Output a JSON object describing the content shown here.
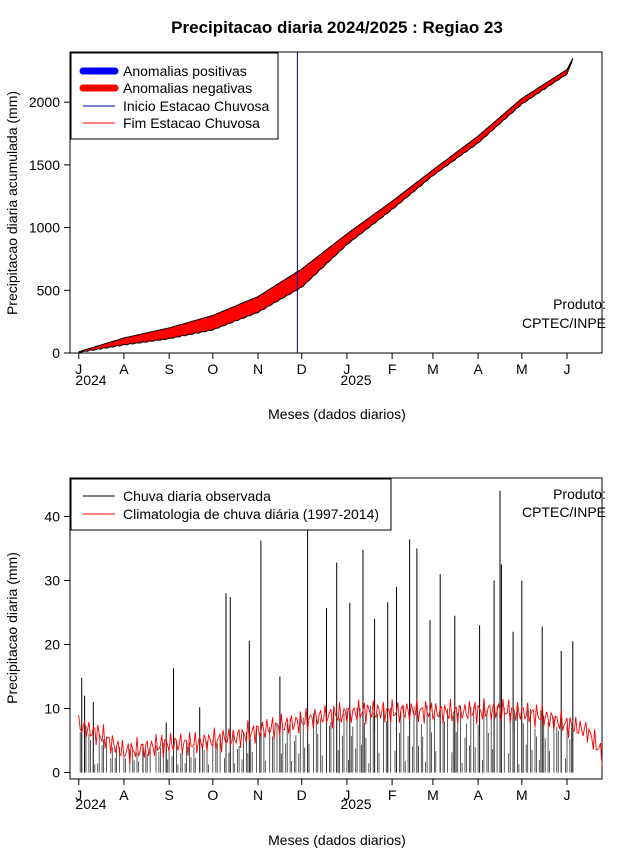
{
  "page": {
    "title": "Precipitacao diaria 2024/2025 : Regiao 23"
  },
  "colors": {
    "positive_anomaly": "#0000ff",
    "negative_anomaly": "#ff0000",
    "rainy_start": "#00008b",
    "rainy_end": "#ff0000",
    "observed": "#000000",
    "climatology": "#ff0000"
  },
  "chart_data": [
    {
      "type": "area",
      "title": "Precipitacao diaria 2024/2025 : Regiao 23",
      "xlabel": "Meses (dados diarios)",
      "ylabel": "Precipitacao diaria acumulada (mm)",
      "x_ticks": [
        "J",
        "A",
        "S",
        "O",
        "N",
        "D",
        "J",
        "F",
        "M",
        "A",
        "M",
        "J"
      ],
      "x_tick_dates": [
        "2024-07-01",
        "2024-08-01",
        "2024-09-01",
        "2024-10-01",
        "2024-11-01",
        "2024-12-01",
        "2025-01-01",
        "2025-02-01",
        "2025-03-01",
        "2025-04-01",
        "2025-05-01",
        "2025-06-01"
      ],
      "year_labels": [
        "2024",
        "2025"
      ],
      "xlim": [
        "2024-06-25",
        "2025-06-25"
      ],
      "ylim": [
        0,
        2400
      ],
      "y_ticks": [
        0,
        500,
        1000,
        1500,
        2000
      ],
      "annotation": [
        "Produto:",
        "CPTEC/INPE"
      ],
      "legend": {
        "position": "top-left",
        "entries": [
          {
            "label": "Anomalias positivas",
            "color": "#0000ff",
            "style": "thick"
          },
          {
            "label": "Anomalias negativas",
            "color": "#ff0000",
            "style": "thick"
          },
          {
            "label": "Inicio Estacao Chuvosa",
            "color": "#00008b",
            "style": "thin"
          },
          {
            "label": "Fim Estacao Chuvosa",
            "color": "#ff0000",
            "style": "thin"
          }
        ]
      },
      "rainy_season_start": "2024-11-28",
      "climatology_cumulative": [
        {
          "date": "2024-07-01",
          "value": 10
        },
        {
          "date": "2024-08-01",
          "value": 120
        },
        {
          "date": "2024-09-01",
          "value": 200
        },
        {
          "date": "2024-10-01",
          "value": 300
        },
        {
          "date": "2024-11-01",
          "value": 450
        },
        {
          "date": "2024-12-01",
          "value": 670
        },
        {
          "date": "2025-01-01",
          "value": 950
        },
        {
          "date": "2025-02-01",
          "value": 1210
        },
        {
          "date": "2025-03-01",
          "value": 1460
        },
        {
          "date": "2025-04-01",
          "value": 1730
        },
        {
          "date": "2025-05-01",
          "value": 2030
        },
        {
          "date": "2025-06-01",
          "value": 2260
        },
        {
          "date": "2025-06-05",
          "value": 2350
        }
      ],
      "observed_cumulative": [
        {
          "date": "2024-07-01",
          "value": 10
        },
        {
          "date": "2024-08-01",
          "value": 70
        },
        {
          "date": "2024-09-01",
          "value": 120
        },
        {
          "date": "2024-10-01",
          "value": 190
        },
        {
          "date": "2024-11-01",
          "value": 330
        },
        {
          "date": "2024-12-01",
          "value": 530
        },
        {
          "date": "2025-01-01",
          "value": 870
        },
        {
          "date": "2025-02-01",
          "value": 1150
        },
        {
          "date": "2025-03-01",
          "value": 1420
        },
        {
          "date": "2025-04-01",
          "value": 1680
        },
        {
          "date": "2025-05-01",
          "value": 1990
        },
        {
          "date": "2025-06-01",
          "value": 2230
        },
        {
          "date": "2025-06-05",
          "value": 2350
        }
      ]
    },
    {
      "type": "bar",
      "xlabel": "Meses (dados diarios)",
      "ylabel": "Precipitacao diaria (mm)",
      "x_ticks": [
        "J",
        "A",
        "S",
        "O",
        "N",
        "D",
        "J",
        "F",
        "M",
        "A",
        "M",
        "J"
      ],
      "x_tick_dates": [
        "2024-07-01",
        "2024-08-01",
        "2024-09-01",
        "2024-10-01",
        "2024-11-01",
        "2024-12-01",
        "2025-01-01",
        "2025-02-01",
        "2025-03-01",
        "2025-04-01",
        "2025-05-01",
        "2025-06-01"
      ],
      "year_labels": [
        "2024",
        "2025"
      ],
      "xlim": [
        "2024-06-25",
        "2025-06-25"
      ],
      "ylim": [
        -1,
        46
      ],
      "y_ticks": [
        0,
        10,
        20,
        30,
        40
      ],
      "annotation": [
        "Produto:",
        "CPTEC/INPE"
      ],
      "legend": {
        "position": "top-left",
        "entries": [
          {
            "label": "Chuva diaria observada",
            "color": "#000000"
          },
          {
            "label": "Climatologia de chuva diária (1997-2014)",
            "color": "#ff0000"
          }
        ]
      },
      "observed_daily": [
        {
          "date": "2024-07-03",
          "value": 14.8
        },
        {
          "date": "2024-07-05",
          "value": 12.0
        },
        {
          "date": "2024-07-11",
          "value": 11.0
        },
        {
          "date": "2024-08-14",
          "value": 4.5
        },
        {
          "date": "2024-08-30",
          "value": 7.8
        },
        {
          "date": "2024-09-04",
          "value": 16.3
        },
        {
          "date": "2024-09-22",
          "value": 10.2
        },
        {
          "date": "2024-10-10",
          "value": 28.0
        },
        {
          "date": "2024-10-13",
          "value": 27.4
        },
        {
          "date": "2024-10-26",
          "value": 20.6
        },
        {
          "date": "2024-11-03",
          "value": 36.2
        },
        {
          "date": "2024-11-16",
          "value": 15.0
        },
        {
          "date": "2024-12-05",
          "value": 38.0
        },
        {
          "date": "2024-12-18",
          "value": 25.7
        },
        {
          "date": "2024-12-25",
          "value": 32.8
        },
        {
          "date": "2025-01-03",
          "value": 26.5
        },
        {
          "date": "2025-01-12",
          "value": 34.8
        },
        {
          "date": "2025-01-20",
          "value": 24.0
        },
        {
          "date": "2025-01-29",
          "value": 26.6
        },
        {
          "date": "2025-02-04",
          "value": 29.0
        },
        {
          "date": "2025-02-13",
          "value": 36.4
        },
        {
          "date": "2025-02-18",
          "value": 35.0
        },
        {
          "date": "2025-02-27",
          "value": 23.8
        },
        {
          "date": "2025-03-06",
          "value": 31.0
        },
        {
          "date": "2025-03-16",
          "value": 24.5
        },
        {
          "date": "2025-04-02",
          "value": 23.0
        },
        {
          "date": "2025-04-12",
          "value": 30.0
        },
        {
          "date": "2025-04-16",
          "value": 44.0
        },
        {
          "date": "2025-04-17",
          "value": 32.5
        },
        {
          "date": "2025-04-25",
          "value": 22.0
        },
        {
          "date": "2025-05-01",
          "value": 30.0
        },
        {
          "date": "2025-05-15",
          "value": 22.8
        },
        {
          "date": "2025-05-28",
          "value": 19.0
        },
        {
          "date": "2025-06-05",
          "value": 20.5
        }
      ],
      "climatology_daily": [
        {
          "date": "2024-07-01",
          "value": 7.2
        },
        {
          "date": "2024-07-15",
          "value": 6.0
        },
        {
          "date": "2024-08-01",
          "value": 3.2
        },
        {
          "date": "2024-08-15",
          "value": 3.8
        },
        {
          "date": "2024-09-01",
          "value": 4.5
        },
        {
          "date": "2024-09-15",
          "value": 4.5
        },
        {
          "date": "2024-10-01",
          "value": 5.0
        },
        {
          "date": "2024-10-15",
          "value": 5.4
        },
        {
          "date": "2024-11-01",
          "value": 6.5
        },
        {
          "date": "2024-11-15",
          "value": 7.2
        },
        {
          "date": "2024-12-01",
          "value": 8.0
        },
        {
          "date": "2024-12-15",
          "value": 8.8
        },
        {
          "date": "2025-01-01",
          "value": 9.2
        },
        {
          "date": "2025-01-15",
          "value": 9.6
        },
        {
          "date": "2025-02-01",
          "value": 9.5
        },
        {
          "date": "2025-02-15",
          "value": 9.6
        },
        {
          "date": "2025-03-01",
          "value": 9.5
        },
        {
          "date": "2025-03-15",
          "value": 9.4
        },
        {
          "date": "2025-04-01",
          "value": 9.6
        },
        {
          "date": "2025-04-15",
          "value": 9.8
        },
        {
          "date": "2025-05-01",
          "value": 9.4
        },
        {
          "date": "2025-05-15",
          "value": 8.8
        },
        {
          "date": "2025-06-01",
          "value": 7.5
        },
        {
          "date": "2025-06-15",
          "value": 6.5
        },
        {
          "date": "2025-06-25",
          "value": 3.0
        }
      ]
    }
  ]
}
